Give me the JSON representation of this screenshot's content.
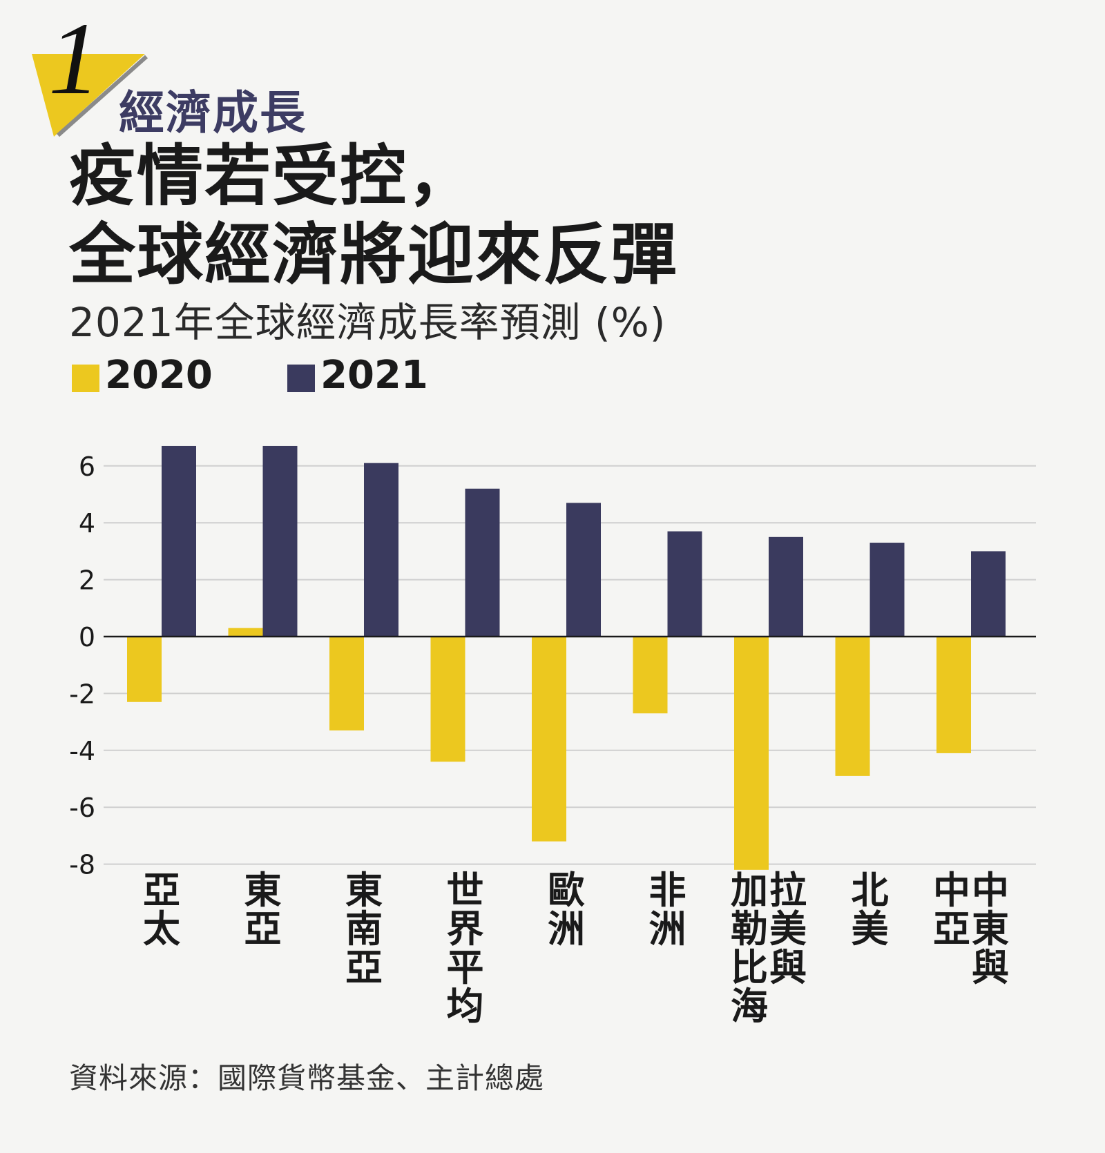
{
  "header": {
    "section_number": "1",
    "section_label": "經濟成長",
    "headline_line1": "疫情若受控，",
    "headline_line2": "全球經濟將迎來反彈",
    "subtitle": "2021年全球經濟成長率預測 (%)"
  },
  "colors": {
    "accent_yellow": "#ecc81f",
    "navy": "#3a3a5e",
    "grid": "#cfcfcf",
    "background": "#f5f5f3"
  },
  "chart_data": {
    "type": "bar",
    "categories": [
      "亞太",
      "東亞",
      "東南亞",
      "世界平均",
      "歐洲",
      "非洲",
      "拉美與加勒比海",
      "北美",
      "中東與中亞"
    ],
    "category_columns": [
      [
        "亞太"
      ],
      [
        "東亞"
      ],
      [
        "東南亞"
      ],
      [
        "世界平均"
      ],
      [
        "歐洲"
      ],
      [
        "非洲"
      ],
      [
        "拉美與",
        "加勒比海"
      ],
      [
        "北美"
      ],
      [
        "中東與",
        "中亞"
      ]
    ],
    "series": [
      {
        "name": "2020",
        "color": "#ecc81f",
        "values": [
          -2.3,
          0.3,
          -3.3,
          -4.4,
          -7.2,
          -2.7,
          -8.2,
          -4.9,
          -4.1
        ]
      },
      {
        "name": "2021",
        "color": "#3a3a5e",
        "values": [
          6.7,
          6.7,
          6.1,
          5.2,
          4.7,
          3.7,
          3.5,
          3.3,
          3.0
        ]
      }
    ],
    "y_ticks": [
      "6",
      "4",
      "2",
      "0",
      "-2",
      "-4",
      "-6",
      "-8"
    ],
    "ylim": [
      -8,
      6.8
    ],
    "grid": true,
    "legend_position": "top-left"
  },
  "footer": {
    "source": "資料來源：國際貨幣基金、主計總處"
  }
}
